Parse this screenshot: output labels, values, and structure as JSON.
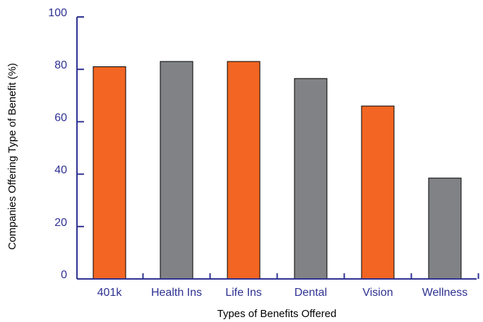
{
  "chart_data": {
    "type": "bar",
    "categories": [
      "401k",
      "Health Ins",
      "Life Ins",
      "Dental",
      "Vision",
      "Wellness"
    ],
    "values": [
      81,
      83,
      83,
      76.5,
      66,
      38.5
    ],
    "bar_colors": [
      "#f26522",
      "#808285",
      "#f26522",
      "#808285",
      "#f26522",
      "#808285"
    ],
    "xlabel": "Types of Benefits Offered",
    "ylabel": "Companies Offering Type of Benefit (%)",
    "ylim": [
      0,
      100
    ],
    "yticks": [
      0,
      20,
      40,
      60,
      80,
      100
    ],
    "grid": false,
    "legend": "none"
  },
  "colors": {
    "axis": "#2e3192",
    "tick_label": "#2e3192",
    "bar_outline": "#000000"
  }
}
